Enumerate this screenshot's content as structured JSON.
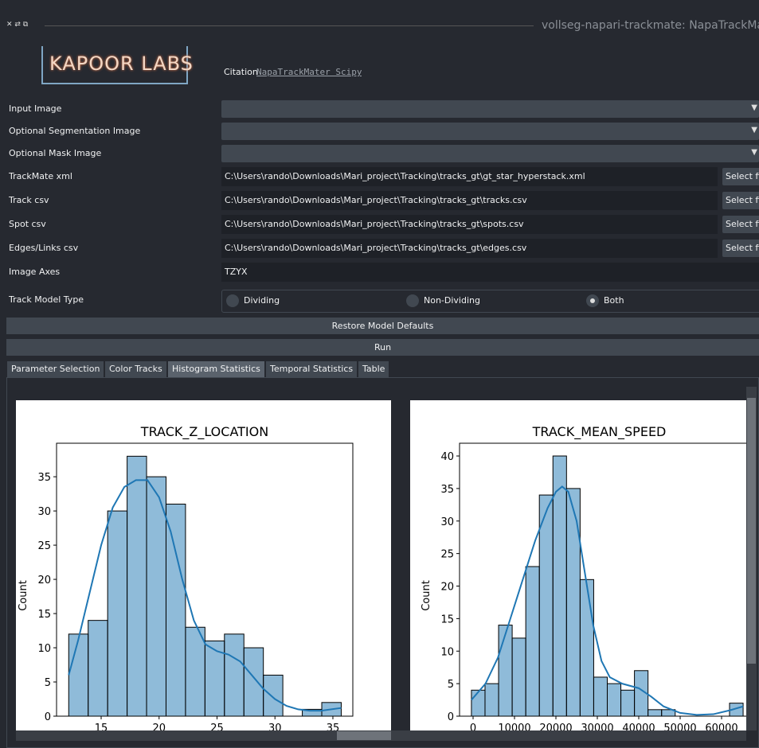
{
  "window_title": "vollseg-napari-trackmate: NapaTrackMater",
  "logo": "KAPOOR LABS",
  "citation": {
    "label": "Citation",
    "link": "NapaTrackMater Scipy"
  },
  "dropdowns": [
    "Input Image",
    "Optional Segmentation Image",
    "Optional Mask Image"
  ],
  "file_fields": [
    {
      "label": "TrackMate xml",
      "path": "C:\\Users\\rando\\Downloads\\Mari_project\\Tracking\\tracks_gt\\gt_star_hyperstack.xml",
      "button": "Select file"
    },
    {
      "label": "Track csv",
      "path": "C:\\Users\\rando\\Downloads\\Mari_project\\Tracking\\tracks_gt\\tracks.csv",
      "button": "Select file"
    },
    {
      "label": "Spot csv",
      "path": "C:\\Users\\rando\\Downloads\\Mari_project\\Tracking\\tracks_gt\\spots.csv",
      "button": "Select file"
    },
    {
      "label": "Edges/Links csv",
      "path": "C:\\Users\\rando\\Downloads\\Mari_project\\Tracking\\tracks_gt\\edges.csv",
      "button": "Select file"
    }
  ],
  "axes_field": {
    "label": "Image Axes",
    "value": "TZYX"
  },
  "track_model": {
    "label": "Track Model Type",
    "options": [
      "Dividing",
      "Non-Dividing",
      "Both"
    ],
    "selected": 2
  },
  "buttons": [
    "Restore Model Defaults",
    "Run"
  ],
  "tabs": [
    "Parameter Selection",
    "Color Tracks",
    "Histogram Statistics",
    "Temporal Statistics",
    "Table"
  ],
  "active_tab": 2,
  "charts": [
    {
      "type": "histogram",
      "title": "TRACK_Z_LOCATION",
      "ylabel": "Count",
      "color": "#1f77b4",
      "bins": [
        12.2,
        13.88,
        15.56,
        17.24,
        18.92,
        20.6,
        22.28,
        23.96,
        25.64,
        27.32,
        29.0,
        30.68,
        32.36,
        34.04,
        35.72
      ],
      "counts": [
        12,
        14,
        30,
        38,
        35,
        31,
        13,
        11,
        12,
        10,
        6,
        0,
        1,
        2
      ],
      "kde": {
        "x": [
          12.2,
          13,
          14,
          15,
          16,
          17,
          18,
          19,
          20,
          21,
          22,
          23,
          24,
          25,
          26,
          27,
          28,
          29,
          30,
          31,
          32,
          33,
          34,
          35.72
        ],
        "y": [
          6,
          11,
          18,
          25,
          30.5,
          33.5,
          34.5,
          34.5,
          32,
          27,
          20,
          14,
          10.5,
          9.5,
          9,
          8,
          6,
          4,
          2.5,
          1.5,
          1,
          0.8,
          0.8,
          1.2
        ]
      },
      "xlim": [
        11.15,
        36.72
      ],
      "ylim": [
        0,
        39.9
      ],
      "xticks": [
        15,
        20,
        25,
        30,
        35
      ],
      "yticks": [
        0,
        5,
        10,
        15,
        20,
        25,
        30,
        35
      ]
    },
    {
      "type": "histogram",
      "title": "TRACK_MEAN_SPEED",
      "ylabel": "Count",
      "color": "#1f77b4",
      "bins": [
        -400,
        2880,
        6160,
        9440,
        12720,
        16000,
        19280,
        22560,
        25840,
        29120,
        32400,
        35680,
        38960,
        42240,
        45520,
        48800,
        52080,
        55360,
        58640,
        61920,
        65200
      ],
      "counts": [
        4,
        5,
        14,
        12,
        23,
        34,
        40,
        35,
        21,
        6,
        5,
        4,
        7,
        1,
        1,
        0,
        0,
        0,
        0,
        2
      ],
      "kde": {
        "x": [
          -400,
          3000,
          6000,
          9000,
          12000,
          15000,
          18000,
          20000,
          21500,
          23000,
          25000,
          27000,
          29000,
          31000,
          33000,
          36000,
          40000,
          43000,
          46000,
          50000,
          54000,
          58000,
          62000,
          65200
        ],
        "y": [
          2.5,
          5,
          9,
          15,
          21,
          27,
          32,
          34.5,
          35.3,
          34.5,
          30,
          22,
          14,
          8.5,
          6,
          5,
          4.3,
          3,
          1.5,
          0.5,
          0.2,
          0.3,
          0.9,
          1.5
        ]
      },
      "xlim": [
        -3270,
        66150
      ],
      "ylim": [
        0,
        41.96
      ],
      "xticks": [
        0,
        10000,
        20000,
        30000,
        40000,
        50000,
        60000
      ],
      "yticks": [
        0,
        5,
        10,
        15,
        20,
        25,
        30,
        35,
        40
      ]
    }
  ]
}
